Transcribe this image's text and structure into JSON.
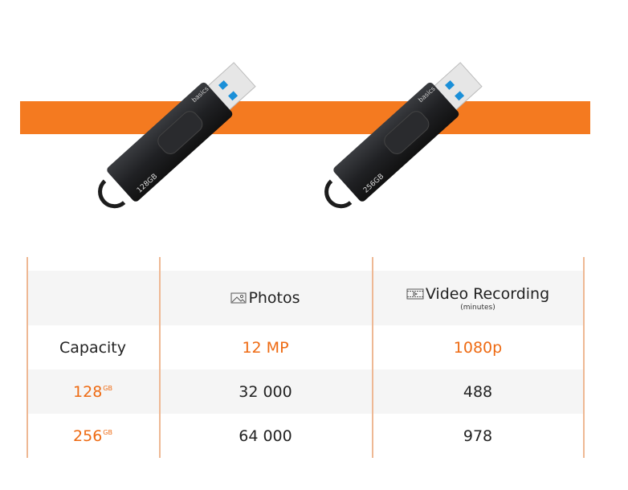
{
  "colors": {
    "accent": "#f47a20",
    "text": "#222222",
    "divider": "#eeb894",
    "row_alt": "#f5f5f5"
  },
  "drives": [
    {
      "capacity_label": "128GB",
      "brand": "basics"
    },
    {
      "capacity_label": "256GB",
      "brand": "basics"
    }
  ],
  "table": {
    "headers": [
      {
        "label": "",
        "icon": ""
      },
      {
        "label": "Photos",
        "icon": "image-icon"
      },
      {
        "label": "Video Recording",
        "sublabel": "(minutes)",
        "icon": "film-icon"
      }
    ],
    "spec_row": {
      "label": "Capacity",
      "photos": "12 MP",
      "video": "1080p"
    },
    "rows": [
      {
        "capacity": "128",
        "unit": "GB",
        "photos": "32 000",
        "video": "488"
      },
      {
        "capacity": "256",
        "unit": "GB",
        "photos": "64 000",
        "video": "978"
      }
    ]
  }
}
